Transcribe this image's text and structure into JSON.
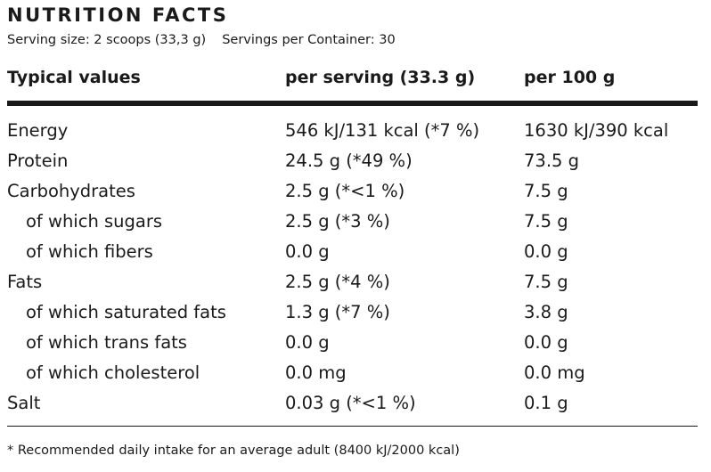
{
  "title": "NUTRITION FACTS",
  "serving_size": "Serving size: 2 scoops (33,3 g)",
  "servings_per_container": "Servings per Container: 30",
  "headers": {
    "col1": "Typical values",
    "col2": "per serving (33.3 g)",
    "col3": "per 100 g"
  },
  "rows": [
    {
      "label": "Energy",
      "per_serving": "546 kJ/131 kcal (*7 %)",
      "per_100g": "1630 kJ/390 kcal"
    },
    {
      "label": "Protein",
      "per_serving": "24.5 g (*49 %)",
      "per_100g": "73.5 g"
    },
    {
      "label": "Carbohydrates",
      "per_serving": "2.5 g (*<1 %)",
      "per_100g": "7.5 g"
    },
    {
      "label": "of which sugars",
      "per_serving": "2.5 g (*3 %)",
      "per_100g": "7.5 g"
    },
    {
      "label": "of which fibers",
      "per_serving": "0.0 g",
      "per_100g": "0.0 g"
    },
    {
      "label": "Fats",
      "per_serving": "2.5 g (*4 %)",
      "per_100g": "7.5 g"
    },
    {
      "label": "of which saturated fats",
      "per_serving": "1.3 g (*7 %)",
      "per_100g": "3.8 g"
    },
    {
      "label": "of which trans fats",
      "per_serving": "0.0 g",
      "per_100g": "0.0 g"
    },
    {
      "label": "of which cholesterol",
      "per_serving": "0.0 mg",
      "per_100g": "0.0 mg"
    },
    {
      "label": "Salt",
      "per_serving": "0.03 g (*<1 %)",
      "per_100g": "0.1 g"
    }
  ],
  "footnote": "* Recommended daily intake for an average adult (8400 kJ/2000 kcal)"
}
